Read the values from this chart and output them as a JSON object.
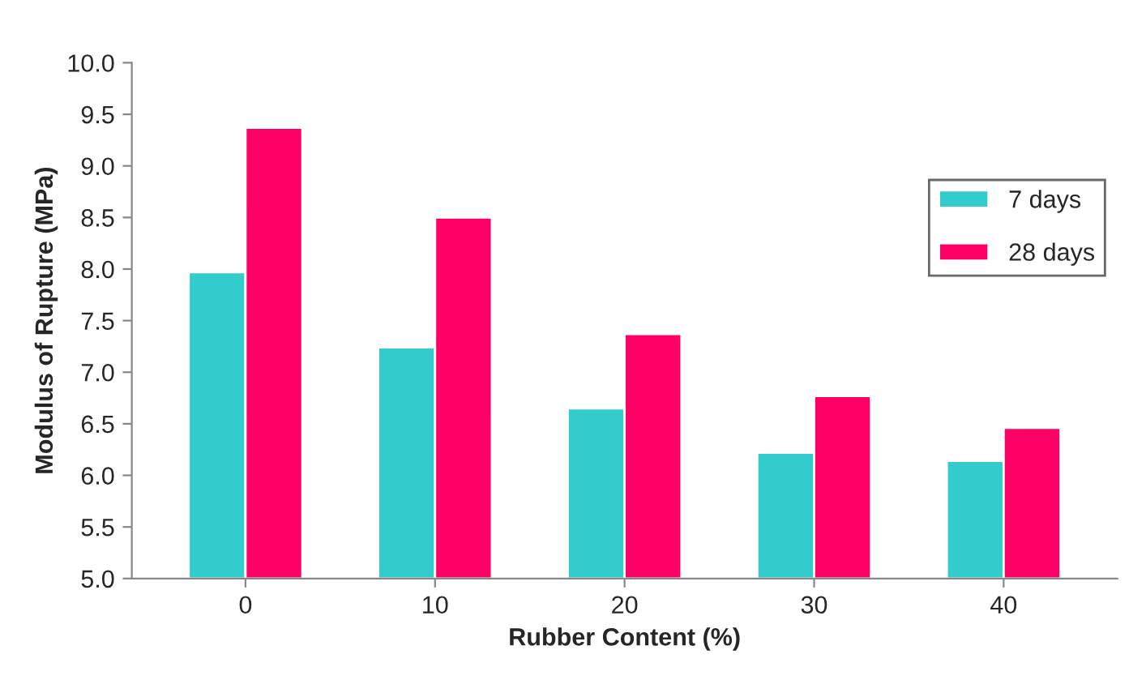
{
  "chart_data": {
    "type": "bar",
    "xlabel": "Rubber Content (%)",
    "ylabel": "Modulus of Rupture (MPa)",
    "categories": [
      "0",
      "10",
      "20",
      "30",
      "40"
    ],
    "series": [
      {
        "name": "7 days",
        "color": "#33cccc",
        "values": [
          7.97,
          7.24,
          6.65,
          6.22,
          6.14
        ]
      },
      {
        "name": "28 days",
        "color": "#ff0066",
        "values": [
          9.37,
          8.5,
          7.37,
          6.77,
          6.46
        ]
      }
    ],
    "ylim": [
      5.0,
      10.0
    ],
    "yticks": [
      {
        "value": 5.0,
        "label": "5.0"
      },
      {
        "value": 5.5,
        "label": "5.5"
      },
      {
        "value": 6.0,
        "label": "6.0"
      },
      {
        "value": 6.5,
        "label": "6.5"
      },
      {
        "value": 7.0,
        "label": "7.0"
      },
      {
        "value": 7.5,
        "label": "7.5"
      },
      {
        "value": 8.0,
        "label": "8.0"
      },
      {
        "value": 8.5,
        "label": "8.5"
      },
      {
        "value": 9.0,
        "label": "9.0"
      },
      {
        "value": 9.5,
        "label": "9.5"
      },
      {
        "value": 10.0,
        "label": "10.0"
      }
    ],
    "grid": false,
    "legend": "right"
  }
}
